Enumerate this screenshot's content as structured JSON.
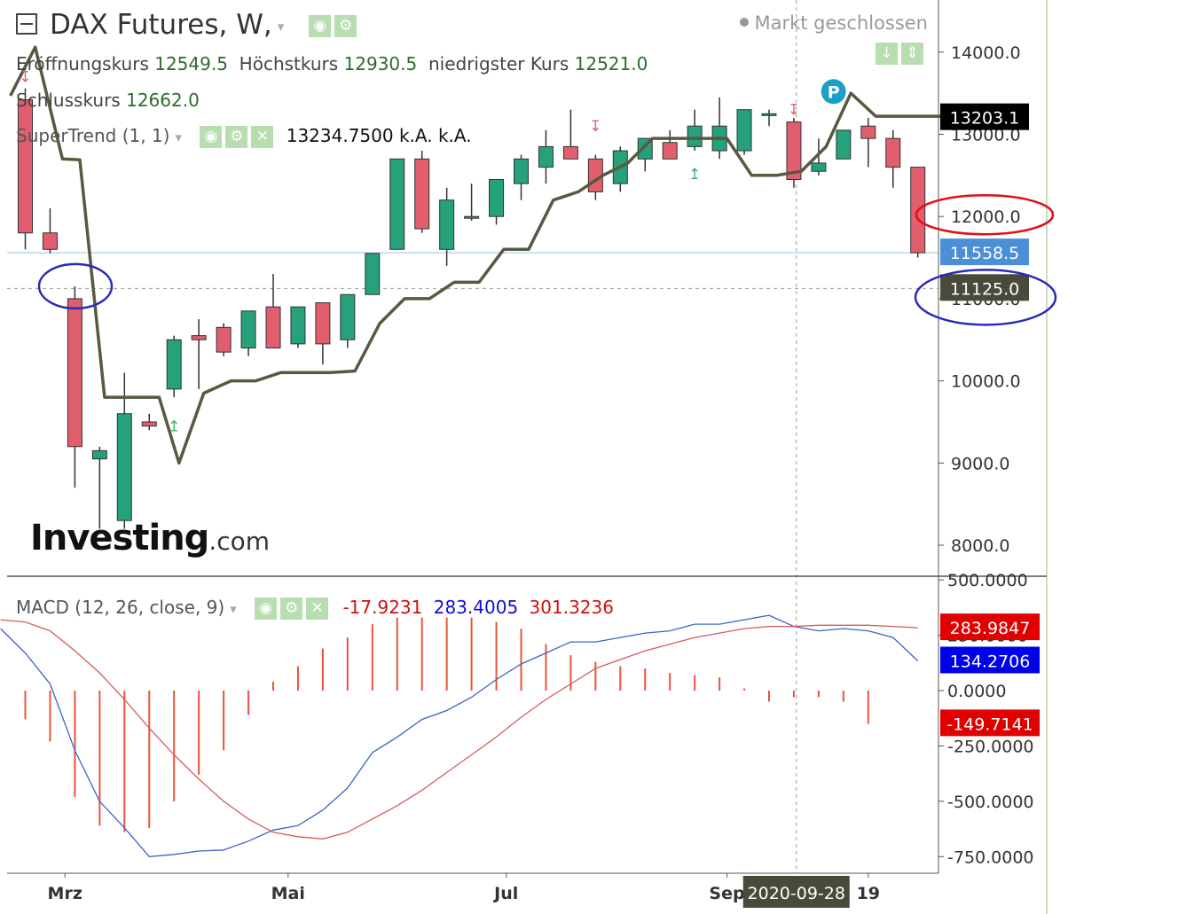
{
  "header": {
    "symbol": "DAX Futures, W,",
    "market_status": "Markt geschlossen",
    "ohlc": {
      "open_label": "Eröffnungskurs",
      "open_value": "12549.5",
      "high_label": "Höchstkurs",
      "high_value": "12930.5",
      "low_label": "niedrigster Kurs",
      "low_value": "12521.0",
      "close_label": "Schlusskurs",
      "close_value": "12662.0"
    },
    "supertrend_label": "SuperTrend (1, 1)",
    "supertrend_values": "13234.7500  k.A.  k.A.",
    "macd_label": "MACD (12, 26, close, 9)",
    "macd_values": [
      "-17.9231",
      "283.4005",
      "301.3236"
    ]
  },
  "logo": {
    "main": "Investing",
    "suffix": ".com"
  },
  "colors": {
    "up": "#26a17b",
    "down": "#e05e6e",
    "supertrend": "#555a40",
    "macd_line": "#3c63c8",
    "signal_line": "#d95a5a",
    "histogram": "#e8553a",
    "last_price": "#4d8fd6",
    "annotation_red": "#e0101a",
    "annotation_blue": "#2a2ab8"
  },
  "chart_data": [
    {
      "type": "candlestick",
      "title": "DAX Futures, W,",
      "ylim": [
        7500,
        14300
      ],
      "y_ticks": [
        "14000.0",
        "13000.0",
        "12000.0",
        "11000.0",
        "10000.0",
        "9000.0",
        "8000.0"
      ],
      "x_tick_labels": [
        {
          "label": "Mrz",
          "index": 1.6
        },
        {
          "label": "Mai",
          "index": 10.6
        },
        {
          "label": "Jul",
          "index": 19.4
        },
        {
          "label": "Sep",
          "index": 28.3
        },
        {
          "label": "19",
          "index": 34.0
        }
      ],
      "crosshair_label": "2020-09-28",
      "crosshair_index": 31.1,
      "candles": [
        [
          0,
          13420,
          13560,
          11600,
          11800
        ],
        [
          1,
          11800,
          12100,
          11550,
          11600
        ],
        [
          2,
          11000,
          11150,
          8700,
          9200
        ],
        [
          3,
          9050,
          9200,
          8200,
          9150
        ],
        [
          4,
          8300,
          10100,
          8200,
          9600
        ],
        [
          5,
          9500,
          9600,
          9400,
          9450
        ],
        [
          6,
          9900,
          10550,
          9800,
          10500
        ],
        [
          7,
          10550,
          10750,
          9900,
          10500
        ],
        [
          8,
          10650,
          10700,
          10300,
          10350
        ],
        [
          9,
          10400,
          10850,
          10300,
          10850
        ],
        [
          10,
          10900,
          11300,
          10400,
          10400
        ],
        [
          11,
          10450,
          10900,
          10400,
          10900
        ],
        [
          12,
          10950,
          10950,
          10200,
          10450
        ],
        [
          13,
          10500,
          11050,
          10400,
          11050
        ],
        [
          14,
          11050,
          11550,
          11050,
          11550
        ],
        [
          15,
          11600,
          12700,
          11600,
          12700
        ],
        [
          16,
          12700,
          12800,
          11800,
          11850
        ],
        [
          17,
          11600,
          12350,
          11400,
          12200
        ],
        [
          18,
          12000,
          12400,
          11950,
          12000
        ],
        [
          19,
          12000,
          12450,
          11900,
          12450
        ],
        [
          20,
          12400,
          12750,
          12200,
          12700
        ],
        [
          21,
          12600,
          13050,
          12400,
          12850
        ],
        [
          22,
          12850,
          13300,
          12700,
          12700
        ],
        [
          23,
          12700,
          12750,
          12200,
          12300
        ],
        [
          24,
          12400,
          12850,
          12300,
          12800
        ],
        [
          25,
          12700,
          12950,
          12550,
          12950
        ],
        [
          26,
          12900,
          13050,
          12700,
          12700
        ],
        [
          27,
          12850,
          13300,
          12800,
          13100
        ],
        [
          28,
          12800,
          13450,
          12700,
          13100
        ],
        [
          29,
          12800,
          13300,
          12750,
          13300
        ],
        [
          30,
          13250,
          13300,
          13100,
          13250
        ],
        [
          31,
          13150,
          13200,
          12350,
          12450
        ],
        [
          32,
          12550,
          12950,
          12500,
          12650
        ],
        [
          33,
          12700,
          13050,
          12700,
          13050
        ],
        [
          34,
          13100,
          13200,
          12600,
          12950
        ],
        [
          35,
          12950,
          13050,
          12350,
          12600
        ],
        [
          36,
          12600,
          12600,
          11500,
          11558.5
        ]
      ],
      "supertrend": {
        "name": "SuperTrend (1, 1)",
        "points": [
          [
            -0.6,
            13470
          ],
          [
            0.4,
            14060
          ],
          [
            1.5,
            12700
          ],
          [
            2.2,
            12690
          ],
          [
            3.2,
            9800
          ],
          [
            4.6,
            9800
          ],
          [
            5.4,
            9800
          ],
          [
            6.2,
            9000
          ],
          [
            7.2,
            9850
          ],
          [
            8.3,
            10000
          ],
          [
            9.3,
            10000
          ],
          [
            10.3,
            10100
          ],
          [
            11.3,
            10100
          ],
          [
            12.3,
            10100
          ],
          [
            13.3,
            10120
          ],
          [
            14.3,
            10700
          ],
          [
            15.3,
            11000
          ],
          [
            16.3,
            11000
          ],
          [
            17.3,
            11200
          ],
          [
            18.3,
            11200
          ],
          [
            19.3,
            11600
          ],
          [
            20.3,
            11600
          ],
          [
            21.3,
            12200
          ],
          [
            22.3,
            12300
          ],
          [
            23.3,
            12500
          ],
          [
            24.3,
            12650
          ],
          [
            25.3,
            12950
          ],
          [
            26.3,
            12950
          ],
          [
            27.3,
            12950
          ],
          [
            28.3,
            12950
          ],
          [
            29.3,
            12500
          ],
          [
            30.3,
            12500
          ],
          [
            31.3,
            12550
          ],
          [
            32.3,
            12850
          ],
          [
            33.3,
            13500
          ],
          [
            34.3,
            13220
          ],
          [
            35.3,
            13220
          ],
          [
            37.3,
            13220
          ],
          [
            38.3,
            13200
          ]
        ]
      },
      "arrows": [
        {
          "index": 0,
          "price": 13700,
          "dir": "down"
        },
        {
          "index": 6,
          "price": 9450,
          "dir": "up"
        },
        {
          "index": 23,
          "price": 13100,
          "dir": "down"
        },
        {
          "index": 27,
          "price": 12520,
          "dir": "up"
        },
        {
          "index": 31,
          "price": 13300,
          "dir": "down"
        }
      ],
      "p_marker": {
        "index": 32.6,
        "price": 13520,
        "label": "P"
      },
      "price_labels": [
        {
          "label": "13203.1",
          "price": 13203.1,
          "bg": "#000000"
        },
        {
          "label": "11558.5",
          "price": 11558.5,
          "bg": "#4d8fd6"
        },
        {
          "label": "11125.0",
          "price": 11125.0,
          "bg": "#4a4a3a"
        }
      ],
      "horizontal_lines": [
        {
          "price": 11558.5,
          "style": "solid",
          "color": "#9ec3ea"
        },
        {
          "price": 11125.0,
          "style": "dashed",
          "color": "#999999"
        }
      ],
      "annotations": [
        {
          "shape": "ellipse",
          "color": "red",
          "target": "12000.0 label"
        },
        {
          "shape": "ellipse",
          "color": "blue",
          "target": "11125.0 label"
        },
        {
          "shape": "ellipse",
          "color": "blue",
          "index": 2.8,
          "price": 11130
        }
      ]
    },
    {
      "type": "line",
      "title": "MACD (12, 26, close, 9)",
      "ylim": [
        -850,
        550
      ],
      "y_ticks": [
        "500.0000",
        "250.0000",
        "0.0000",
        "-250.0000",
        "-500.0000",
        "-750.0000"
      ],
      "histogram": [
        [
          0,
          -130
        ],
        [
          1,
          -230
        ],
        [
          2,
          -480
        ],
        [
          3,
          -610
        ],
        [
          4,
          -640
        ],
        [
          5,
          -620
        ],
        [
          6,
          -500
        ],
        [
          7,
          -380
        ],
        [
          8,
          -270
        ],
        [
          9,
          -110
        ],
        [
          10,
          40
        ],
        [
          11,
          110
        ],
        [
          12,
          190
        ],
        [
          13,
          240
        ],
        [
          14,
          300
        ],
        [
          15,
          330
        ],
        [
          16,
          330
        ],
        [
          17,
          330
        ],
        [
          18,
          330
        ],
        [
          19,
          310
        ],
        [
          20,
          280
        ],
        [
          21,
          210
        ],
        [
          22,
          160
        ],
        [
          23,
          130
        ],
        [
          24,
          110
        ],
        [
          25,
          100
        ],
        [
          26,
          80
        ],
        [
          27,
          70
        ],
        [
          28,
          60
        ],
        [
          29,
          10
        ],
        [
          30,
          -50
        ],
        [
          31,
          -30
        ],
        [
          32,
          -30
        ],
        [
          33,
          -50
        ],
        [
          34,
          -150
        ]
      ],
      "series": [
        {
          "name": "MACD",
          "points": [
            [
              -1,
              280
            ],
            [
              0,
              170
            ],
            [
              1,
              30
            ],
            [
              2,
              -270
            ],
            [
              3,
              -500
            ],
            [
              4,
              -620
            ],
            [
              5,
              -750
            ],
            [
              6,
              -740
            ],
            [
              7,
              -725
            ],
            [
              8,
              -720
            ],
            [
              9,
              -680
            ],
            [
              10,
              -630
            ],
            [
              11,
              -610
            ],
            [
              12,
              -540
            ],
            [
              13,
              -440
            ],
            [
              14,
              -280
            ],
            [
              15,
              -210
            ],
            [
              16,
              -130
            ],
            [
              17,
              -90
            ],
            [
              18,
              -30
            ],
            [
              19,
              50
            ],
            [
              20,
              120
            ],
            [
              21,
              170
            ],
            [
              22,
              220
            ],
            [
              23,
              220
            ],
            [
              24,
              240
            ],
            [
              25,
              260
            ],
            [
              26,
              270
            ],
            [
              27,
              300
            ],
            [
              28,
              300
            ],
            [
              29,
              320
            ],
            [
              30,
              340
            ],
            [
              31,
              290
            ],
            [
              32,
              270
            ],
            [
              33,
              280
            ],
            [
              34,
              270
            ],
            [
              35,
              240
            ],
            [
              36,
              134.27
            ]
          ]
        },
        {
          "name": "Signal",
          "points": [
            [
              -1,
              320
            ],
            [
              0,
              310
            ],
            [
              1,
              270
            ],
            [
              2,
              180
            ],
            [
              3,
              80
            ],
            [
              4,
              -40
            ],
            [
              5,
              -170
            ],
            [
              6,
              -290
            ],
            [
              7,
              -400
            ],
            [
              8,
              -500
            ],
            [
              9,
              -580
            ],
            [
              10,
              -640
            ],
            [
              11,
              -660
            ],
            [
              12,
              -670
            ],
            [
              13,
              -640
            ],
            [
              14,
              -580
            ],
            [
              15,
              -520
            ],
            [
              16,
              -450
            ],
            [
              17,
              -370
            ],
            [
              18,
              -290
            ],
            [
              19,
              -210
            ],
            [
              20,
              -120
            ],
            [
              21,
              -40
            ],
            [
              22,
              30
            ],
            [
              23,
              100
            ],
            [
              24,
              140
            ],
            [
              25,
              180
            ],
            [
              26,
              210
            ],
            [
              27,
              240
            ],
            [
              28,
              260
            ],
            [
              29,
              280
            ],
            [
              30,
              290
            ],
            [
              31,
              290
            ],
            [
              32,
              295
            ],
            [
              33,
              295
            ],
            [
              34,
              295
            ],
            [
              35,
              290
            ],
            [
              36,
              283.98
            ]
          ]
        }
      ],
      "value_labels": [
        {
          "label": "283.9847",
          "value": 283.9847,
          "bg": "#e00000"
        },
        {
          "label": "134.2706",
          "value": 134.2706,
          "bg": "#0000e8"
        },
        {
          "label": "-149.7141",
          "value": -149.7141,
          "bg": "#e00000"
        }
      ]
    }
  ]
}
